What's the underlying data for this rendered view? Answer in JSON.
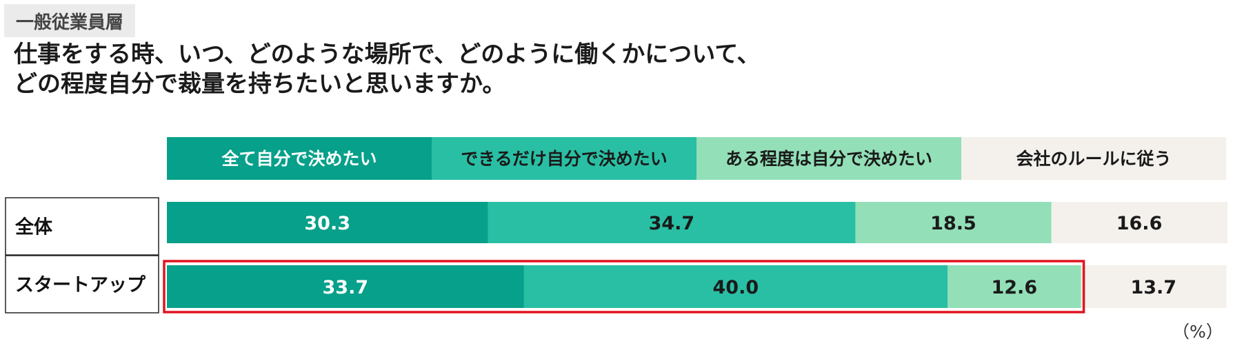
{
  "header": {
    "tag": "一般従業員層",
    "question_line1": "仕事をする時、いつ、どのような場所で、どのように働くかについて、",
    "question_line2": "どの程度自分で裁量を持ちたいと思いますか。"
  },
  "chart_data": {
    "type": "bar",
    "orientation": "horizontal",
    "stacked": true,
    "percent_stacked": true,
    "unit": "（%）",
    "legend_position": "top",
    "categories": [
      "全体",
      "スタートアップ"
    ],
    "series": [
      {
        "name": "全て自分で決めたい",
        "values": [
          30.3,
          33.7
        ],
        "color": "#07a08a",
        "label_color": "#ffffff"
      },
      {
        "name": "できるだけ自分で決めたい",
        "values": [
          34.7,
          40.0
        ],
        "color": "#29bfa4",
        "label_color": "#1a1a1a"
      },
      {
        "name": "ある程度は自分で決めたい",
        "values": [
          18.5,
          12.6
        ],
        "color": "#93dfb8",
        "label_color": "#1a1a1a"
      },
      {
        "name": "会社のルールに従う",
        "values": [
          16.6,
          13.7
        ],
        "color": "#f4f1ec",
        "label_color": "#1a1a1a"
      }
    ],
    "value_labels": [
      [
        "30.3",
        "34.7",
        "18.5",
        "16.6"
      ],
      [
        "33.7",
        "40.0",
        "12.6",
        "13.7"
      ]
    ],
    "highlight": {
      "category": "スタートアップ",
      "color": "#e0141e"
    },
    "xlim": [
      0,
      100
    ],
    "grid": false
  }
}
